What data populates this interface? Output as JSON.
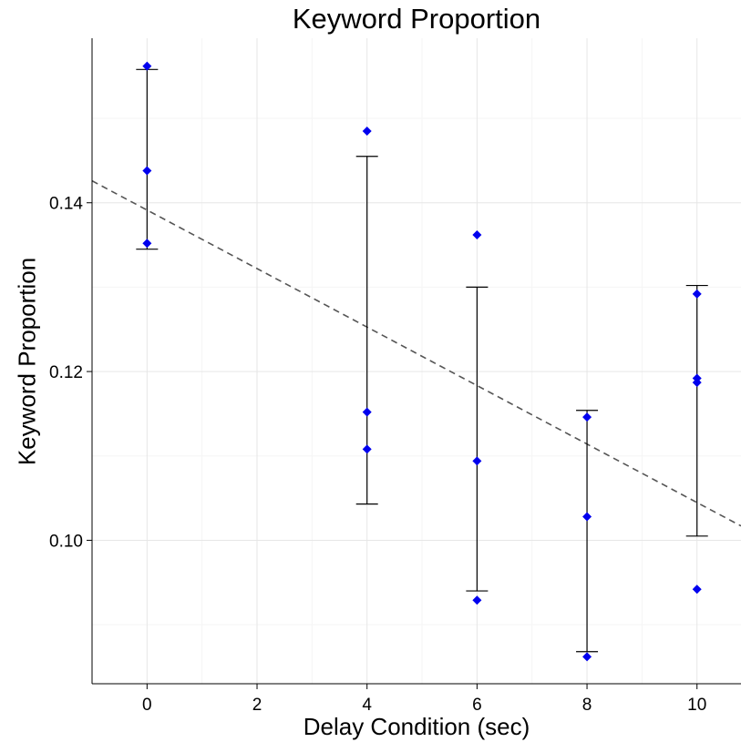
{
  "chart_data": {
    "type": "scatter",
    "title": "Keyword Proportion",
    "xlabel": "Delay Condition (sec)",
    "ylabel": "Keyword Proportion",
    "xlim": [
      -1,
      10.8
    ],
    "ylim": [
      0.083,
      0.1595
    ],
    "x_ticks": [
      0,
      2,
      4,
      6,
      8,
      10
    ],
    "x_tick_labels": [
      "0",
      "2",
      "4",
      "6",
      "8",
      "10"
    ],
    "y_ticks": [
      0.1,
      0.12,
      0.14
    ],
    "y_tick_labels": [
      "0.10",
      "0.12",
      "0.14"
    ],
    "grid": true,
    "points": {
      "x": [
        0,
        0,
        0,
        4,
        4,
        4,
        6,
        6,
        6,
        8,
        8,
        8,
        10,
        10,
        10,
        10
      ],
      "y": [
        0.1562,
        0.1438,
        0.1352,
        0.1485,
        0.1152,
        0.1108,
        0.1362,
        0.1094,
        0.0929,
        0.1146,
        0.1028,
        0.0862,
        0.1292,
        0.1192,
        0.1187,
        0.0942
      ],
      "color": "#0000ee"
    },
    "error_bars": [
      {
        "x": 0,
        "low": 0.1345,
        "high": 0.1558
      },
      {
        "x": 4,
        "low": 0.1043,
        "high": 0.1455
      },
      {
        "x": 6,
        "low": 0.094,
        "high": 0.13
      },
      {
        "x": 8,
        "low": 0.0868,
        "high": 0.1154
      },
      {
        "x": 10,
        "low": 0.1005,
        "high": 0.1302
      }
    ],
    "trend_line": {
      "style": "dashed",
      "color": "#555555",
      "x": [
        -1,
        10.8
      ],
      "y": [
        0.1426,
        0.1017
      ]
    }
  }
}
